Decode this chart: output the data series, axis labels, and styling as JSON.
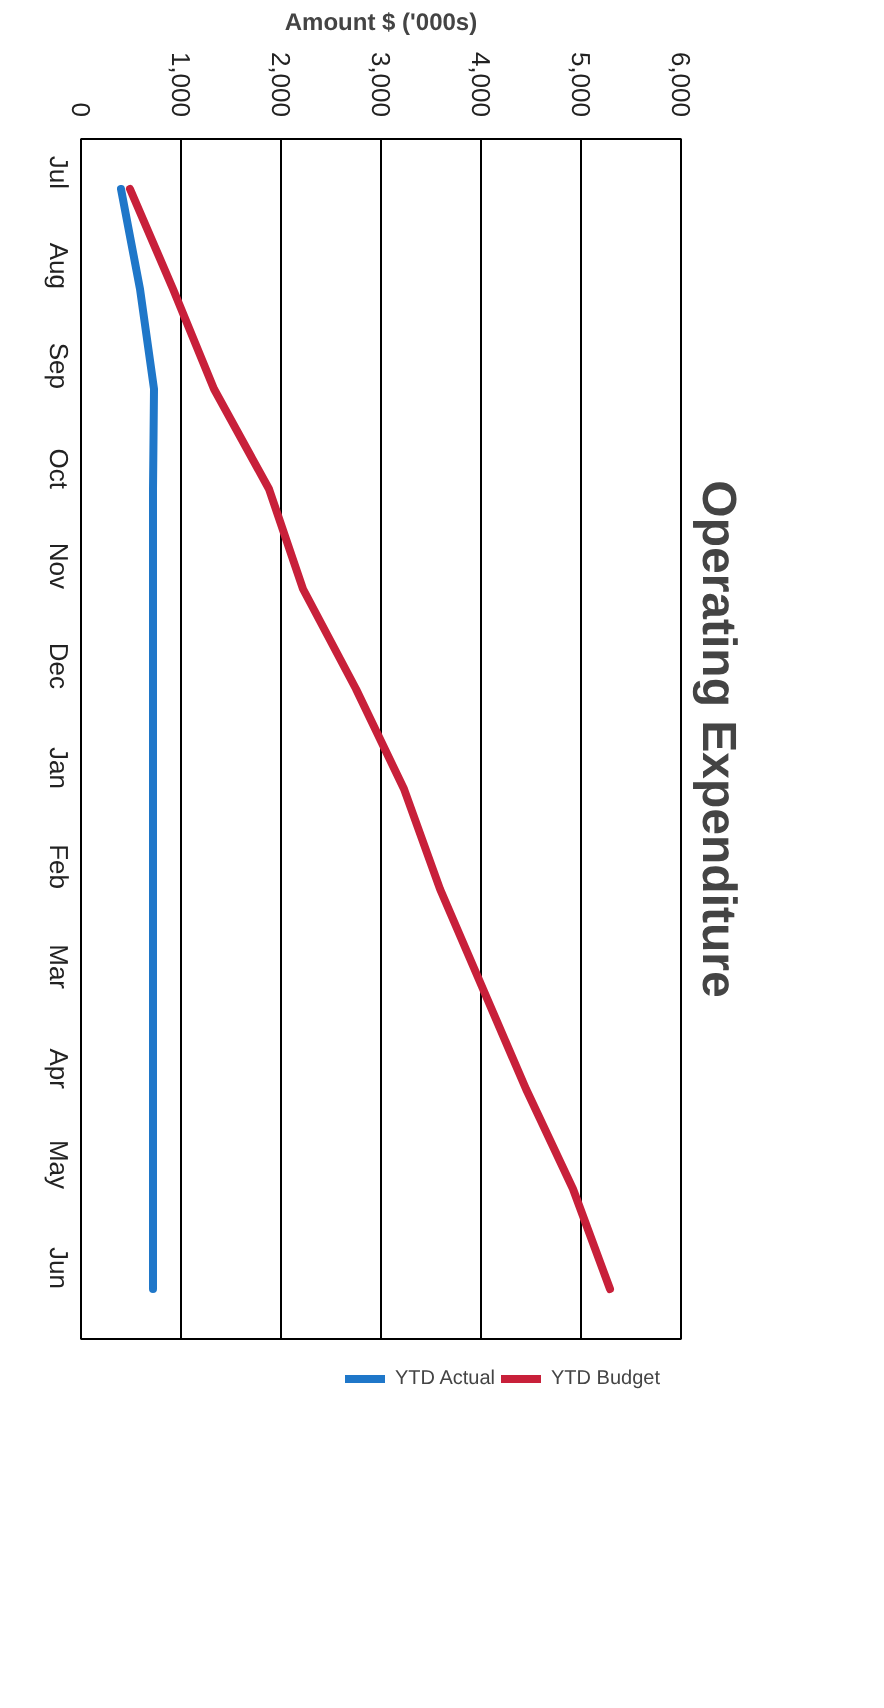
{
  "chart_data": {
    "type": "line",
    "title": "Operating Expenditure",
    "xlabel": "Amount $ ('000s)",
    "orientation": "horizontal",
    "categories": [
      "Jul",
      "Aug",
      "Sep",
      "Oct",
      "Nov",
      "Dec",
      "Jan",
      "Feb",
      "Mar",
      "Apr",
      "May",
      "Jun"
    ],
    "series": [
      {
        "name": "YTD Actual",
        "color": "#1f77c9",
        "values": [
          400,
          590,
          730,
          720,
          720,
          720,
          720,
          720,
          720,
          720,
          720,
          720
        ]
      },
      {
        "name": "YTD Budget",
        "color": "#c8203a",
        "values": [
          490,
          920,
          1330,
          1880,
          2220,
          2750,
          3230,
          3590,
          4020,
          4450,
          4920,
          5290
        ]
      }
    ],
    "xlim": [
      0,
      6000
    ],
    "xticks": [
      0,
      {
        "value": 1000,
        "label": "1,000"
      },
      {
        "value": 2000,
        "label": "2,000"
      },
      {
        "value": 3000,
        "label": "3,000"
      },
      {
        "value": 4000,
        "label": "4,000"
      },
      {
        "value": 5000,
        "label": "5,000"
      },
      {
        "value": 6000,
        "label": "6,000"
      }
    ],
    "grid": "x",
    "legend": "bottom",
    "marker": "none",
    "line_style": "solid"
  }
}
